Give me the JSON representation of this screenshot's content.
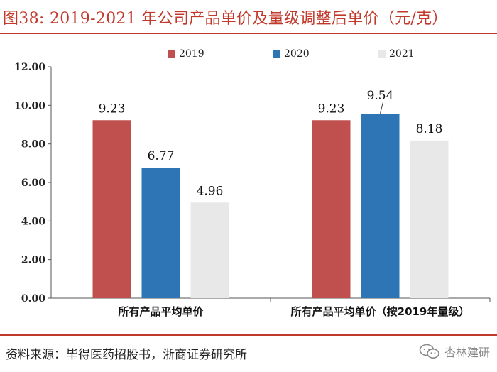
{
  "header": {
    "title": "图38:   2019-2021 年公司产品单价及量级调整后单价（元/克）",
    "accent_color": "#c0392b"
  },
  "chart_data": {
    "type": "bar",
    "title": "2019-2021 年公司产品单价及量级调整后单价（元/克）",
    "categories": [
      "所有产品平均单价",
      "所有产品平均单价（按2019年量级）"
    ],
    "series": [
      {
        "name": "2019",
        "color": "#c0504d",
        "values": [
          9.23,
          9.23
        ]
      },
      {
        "name": "2020",
        "color": "#2e75b6",
        "values": [
          6.77,
          9.54
        ]
      },
      {
        "name": "2021",
        "color": "#e8e8e8",
        "values": [
          4.96,
          8.18
        ]
      }
    ],
    "data_labels": [
      [
        "9.23",
        "6.77",
        "4.96"
      ],
      [
        "9.23",
        "9.54",
        "8.18"
      ]
    ],
    "yticks": [
      "0.00",
      "2.00",
      "4.00",
      "6.00",
      "8.00",
      "10.00",
      "12.00"
    ],
    "ylim": [
      0,
      12
    ],
    "xlabel": "",
    "ylabel": "",
    "legend_position": "top-center",
    "grid": false
  },
  "footer": {
    "source": "资料来源：毕得医药招股书，浙商证券研究所",
    "watermark": "杏林建研",
    "watermark_icon": "wechat-icon"
  }
}
